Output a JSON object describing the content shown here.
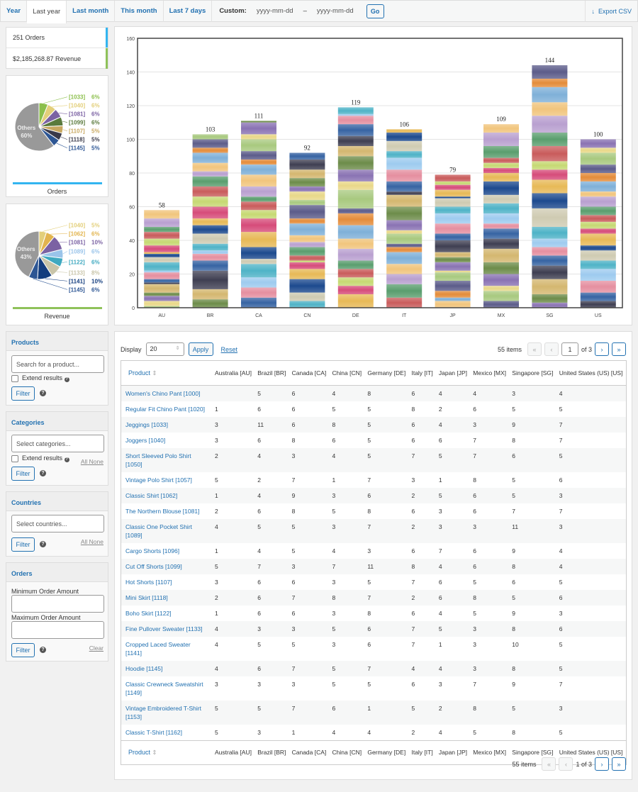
{
  "tabs": [
    {
      "label": "Year"
    },
    {
      "label": "Last year"
    },
    {
      "label": "Last month"
    },
    {
      "label": "This month"
    },
    {
      "label": "Last 7 days"
    }
  ],
  "custom": {
    "label": "Custom:",
    "from_placeholder": "yyyy-mm-dd",
    "sep": "–",
    "to_placeholder": "yyyy-mm-dd",
    "go": "Go"
  },
  "export": {
    "label": "Export CSV",
    "icon": "download-arrow-icon"
  },
  "stats": {
    "orders": "251 Orders",
    "revenue": "$2,185,268.87 Revenue",
    "orders_color": "#33b5f0",
    "revenue_color": "#8fc25a"
  },
  "pie_orders": {
    "caption": "Orders",
    "slices": [
      {
        "label": "[1033]",
        "pct": "6%",
        "value": 6,
        "color": "#8bbf4b"
      },
      {
        "label": "[1040]",
        "pct": "6%",
        "value": 6,
        "color": "#e3cf7a"
      },
      {
        "label": "[1081]",
        "pct": "6%",
        "value": 6,
        "color": "#7b62a3"
      },
      {
        "label": "[1099]",
        "pct": "6%",
        "value": 6,
        "color": "#5a7a3c"
      },
      {
        "label": "[1107]",
        "pct": "5%",
        "value": 5,
        "color": "#c8a860"
      },
      {
        "label": "[1118]",
        "pct": "5%",
        "value": 5,
        "color": "#3a3a4a"
      },
      {
        "label": "[1145]",
        "pct": "5%",
        "value": 5,
        "color": "#2d5694"
      },
      {
        "label": "Others",
        "pct": "60%",
        "value": 60,
        "color": "#999999"
      }
    ]
  },
  "pie_revenue": {
    "caption": "Revenue",
    "slices": [
      {
        "label": "[1040]",
        "pct": "5%",
        "value": 5,
        "color": "#e3cf7a"
      },
      {
        "label": "[1062]",
        "pct": "6%",
        "value": 6,
        "color": "#e2b44e"
      },
      {
        "label": "[1081]",
        "pct": "10%",
        "value": 10,
        "color": "#7b62a3"
      },
      {
        "label": "[1089]",
        "pct": "6%",
        "value": 6,
        "color": "#9ac4ea"
      },
      {
        "label": "[1122]",
        "pct": "6%",
        "value": 6,
        "color": "#3fa9c0"
      },
      {
        "label": "[1133]",
        "pct": "8%",
        "value": 8,
        "color": "#c8c4a8"
      },
      {
        "label": "[1141]",
        "pct": "10%",
        "value": 10,
        "color": "#133d7e"
      },
      {
        "label": "[1145]",
        "pct": "6%",
        "value": 6,
        "color": "#2d5694"
      },
      {
        "label": "Others",
        "pct": "43%",
        "value": 43,
        "color": "#999999"
      }
    ]
  },
  "filters": {
    "products": {
      "title": "Products",
      "placeholder": "Search for a product...",
      "extend": "Extend results",
      "filter": "Filter"
    },
    "categories": {
      "title": "Categories",
      "placeholder": "Select categories...",
      "extend": "Extend results",
      "filter": "Filter",
      "all": "All",
      "none": "None"
    },
    "countries": {
      "title": "Countries",
      "placeholder": "Select countries...",
      "filter": "Filter",
      "all": "All",
      "none": "None"
    },
    "orders": {
      "title": "Orders",
      "min_label": "Minimum Order Amount",
      "max_label": "Maximum Order Amount",
      "filter": "Filter",
      "clear": "Clear"
    }
  },
  "chart_data": {
    "type": "bar",
    "stacked": true,
    "categories": [
      "AU",
      "BR",
      "CA",
      "CN",
      "DE",
      "IT",
      "JP",
      "MX",
      "SG",
      "US"
    ],
    "values": [
      58,
      103,
      111,
      92,
      119,
      106,
      79,
      109,
      144,
      100
    ],
    "ylim": [
      0,
      160
    ],
    "yticks": [
      0,
      20,
      40,
      60,
      80,
      100,
      120,
      140,
      160
    ],
    "grid": true
  },
  "table": {
    "display_label": "Display",
    "display_value": "20",
    "apply": "Apply",
    "reset": "Reset",
    "items": "55 items",
    "page": "1",
    "of_pages": "of 3",
    "bottom_page": "1 of 3",
    "columns": [
      "Product",
      "Australia [AU]",
      "Brazil [BR]",
      "Canada [CA]",
      "China [CN]",
      "Germany [DE]",
      "Italy [IT]",
      "Japan [JP]",
      "Mexico [MX]",
      "Singapore [SG]",
      "United States (US) [US]"
    ],
    "rows": [
      [
        "Women's Chino Pant [1000]",
        "",
        "5",
        "6",
        "4",
        "8",
        "6",
        "4",
        "4",
        "3",
        "4"
      ],
      [
        "Regular Fit Chino Pant [1020]",
        "1",
        "6",
        "6",
        "5",
        "5",
        "8",
        "2",
        "6",
        "5",
        "5"
      ],
      [
        "Jeggings [1033]",
        "3",
        "11",
        "6",
        "8",
        "5",
        "6",
        "4",
        "3",
        "9",
        "7"
      ],
      [
        "Joggers [1040]",
        "3",
        "6",
        "8",
        "6",
        "5",
        "6",
        "6",
        "7",
        "8",
        "7"
      ],
      [
        "Short Sleeved Polo Shirt [1050]",
        "2",
        "4",
        "3",
        "4",
        "5",
        "7",
        "5",
        "7",
        "6",
        "5"
      ],
      [
        "Vintage Polo Shirt [1057]",
        "5",
        "2",
        "7",
        "1",
        "7",
        "3",
        "1",
        "8",
        "5",
        "6"
      ],
      [
        "Classic Shirt [1062]",
        "1",
        "4",
        "9",
        "3",
        "6",
        "2",
        "5",
        "6",
        "5",
        "3"
      ],
      [
        "The Northern Blouse [1081]",
        "2",
        "6",
        "8",
        "5",
        "8",
        "6",
        "3",
        "6",
        "7",
        "7"
      ],
      [
        "Classic One Pocket Shirt [1089]",
        "4",
        "5",
        "5",
        "3",
        "7",
        "2",
        "3",
        "3",
        "11",
        "3"
      ],
      [
        "Cargo Shorts [1096]",
        "1",
        "4",
        "5",
        "4",
        "3",
        "6",
        "7",
        "6",
        "9",
        "4"
      ],
      [
        "Cut Off Shorts [1099]",
        "5",
        "7",
        "3",
        "7",
        "11",
        "8",
        "4",
        "6",
        "8",
        "4"
      ],
      [
        "Hot Shorts [1107]",
        "3",
        "6",
        "6",
        "3",
        "5",
        "7",
        "6",
        "5",
        "6",
        "5"
      ],
      [
        "Mini Skirt [1118]",
        "2",
        "6",
        "7",
        "8",
        "7",
        "2",
        "6",
        "8",
        "5",
        "6"
      ],
      [
        "Boho Skirt [1122]",
        "1",
        "6",
        "6",
        "3",
        "8",
        "6",
        "4",
        "5",
        "9",
        "3"
      ],
      [
        "Fine Pullover Sweater [1133]",
        "4",
        "3",
        "3",
        "5",
        "6",
        "7",
        "5",
        "3",
        "8",
        "6"
      ],
      [
        "Cropped Laced Sweater [1141]",
        "4",
        "5",
        "5",
        "3",
        "6",
        "7",
        "1",
        "3",
        "10",
        "5"
      ],
      [
        "Hoodie [1145]",
        "4",
        "6",
        "7",
        "5",
        "7",
        "4",
        "4",
        "3",
        "8",
        "5"
      ],
      [
        "Classic Crewneck Sweatshirt [1149]",
        "3",
        "3",
        "3",
        "5",
        "5",
        "6",
        "3",
        "7",
        "9",
        "7"
      ],
      [
        "Vintage Embroidered T-Shirt [1153]",
        "5",
        "5",
        "7",
        "6",
        "1",
        "5",
        "2",
        "8",
        "5",
        "3"
      ],
      [
        "Classic T-Shirt [1162]",
        "5",
        "3",
        "1",
        "4",
        "4",
        "2",
        "4",
        "5",
        "8",
        "5"
      ]
    ]
  }
}
